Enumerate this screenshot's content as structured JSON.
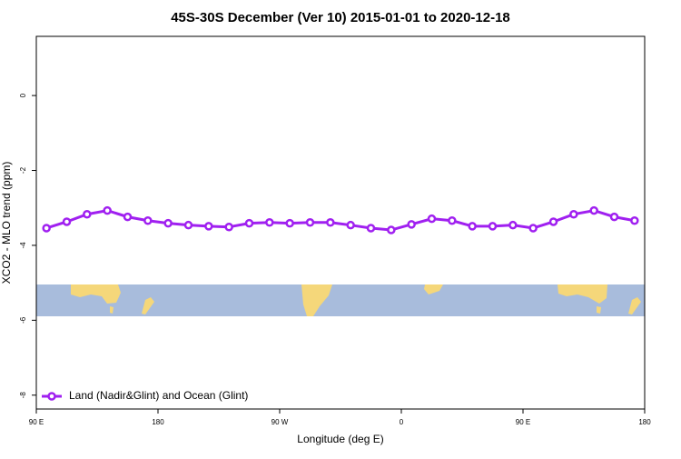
{
  "chart_data": {
    "type": "line",
    "title": "45S-30S December (Ver 10)   2015-01-01 to 2020-12-18",
    "x_label": "Longitude (deg E)",
    "y_label": "XCO2 - MLO trend (ppm)",
    "xlim": [
      90,
      540
    ],
    "xticks": [
      {
        "value": 90,
        "label": "90 E"
      },
      180,
      {
        "value": 270,
        "label": "90 W"
      },
      {
        "value": 360,
        "label": "0"
      },
      {
        "value": 450,
        "label": "90 E"
      },
      {
        "value": 540,
        "label": "180"
      }
    ],
    "ylim": [
      -8.37,
      1.58
    ],
    "yticks": [
      0,
      -2,
      -4,
      -6,
      -8
    ],
    "legend": "bottom-left",
    "series": [
      {
        "name": "Land (Nadir&Glint) and Ocean (Glint)",
        "color": "#a020f0",
        "x": [
          97.5,
          112.5,
          127.5,
          142.5,
          157.5,
          172.5,
          187.5,
          202.5,
          217.5,
          232.5,
          247.5,
          262.5,
          277.5,
          292.5,
          307.5,
          322.5,
          337.5,
          352.5,
          367.5,
          382.5,
          397.5,
          412.5,
          427.5,
          442.5,
          457.5,
          472.5,
          487.5,
          502.5,
          517.5,
          532.5
        ],
        "values": [
          -3.54,
          -3.37,
          -3.17,
          -3.07,
          -3.24,
          -3.34,
          -3.41,
          -3.46,
          -3.49,
          -3.51,
          -3.41,
          -3.39,
          -3.41,
          -3.39,
          -3.39,
          -3.46,
          -3.54,
          -3.59,
          -3.44,
          -3.29,
          -3.34,
          -3.49,
          -3.49,
          -3.46,
          -3.54,
          -3.37,
          -3.17,
          -3.07,
          -3.24,
          -3.34
        ]
      }
    ]
  }
}
